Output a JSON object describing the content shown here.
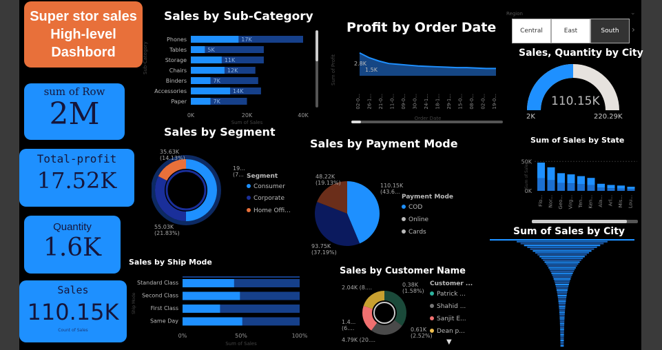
{
  "dashboard": {
    "title_line1": "Super stor sales",
    "title_line2": "High-level",
    "title_line3": "Dashbord"
  },
  "kpis": {
    "rows_label": "sum of Row",
    "rows_value": "2M",
    "profit_label": "Total-profit",
    "profit_value": "17.52K",
    "quantity_label": "Quantity",
    "quantity_value": "1.6K",
    "sales_label": "Sales",
    "sales_value": "110.15K",
    "sales_caption": "Count of Sales"
  },
  "subcategory": {
    "title": "Sales by Sub-Category",
    "ylabel": "Sub-Category",
    "xlabel": "Sum of Sales",
    "xticks": [
      "0K",
      "20K",
      "40K"
    ]
  },
  "profit_date": {
    "title": "Profit by Order Date",
    "ylabel": "Sum of Profit",
    "xlabel": "Order Date",
    "xticks": [
      "02-0...",
      "26-1...",
      "21-0...",
      "11-0...",
      "09-0...",
      "30-0...",
      "24-1...",
      "18-1...",
      "29-1...",
      "15-0...",
      "08-0...",
      "02-0...",
      "19-0..."
    ]
  },
  "region_slicer": {
    "label": "Region",
    "options": [
      "Central",
      "East",
      "South"
    ],
    "selected": "South"
  },
  "gauge": {
    "title": "Sales, Quantity by City",
    "value": "110.15K",
    "min": "2K",
    "max": "220.29K",
    "fraction": 0.5
  },
  "segment": {
    "title": "Sales by Segment",
    "legend_title": "Segment",
    "labels": [
      "Consumer",
      "Corporate",
      "Home Offi..."
    ],
    "colors": [
      "#1e90ff",
      "#1a2f9a",
      "#e8703a"
    ],
    "values": [
      55.03,
      35.63,
      19.5
    ],
    "callout_top": "35.63K",
    "callout_top_pct": "(14.13%)",
    "callout_right": "19...",
    "callout_right_pct": "(7...",
    "callout_bottom": "55.03K",
    "callout_bottom_pct": "(21.83%)"
  },
  "payment": {
    "title": "Sales by Payment Mode",
    "legend_title": "Payment Mode",
    "labels": [
      "COD",
      "Online",
      "Cards"
    ],
    "colors": [
      "#1e90ff",
      "#0b1a5e",
      "#6b2e1a"
    ],
    "values": [
      110.15,
      93.75,
      48.22
    ],
    "callout_cod": "110.15K",
    "callout_cod_pct": "(43.6...",
    "callout_online": "93.75K",
    "callout_online_pct": "(37.19%)",
    "callout_cards": "48.22K",
    "callout_cards_pct": "(19.13%)"
  },
  "state": {
    "title": "Sum of Sales by State",
    "ylabel": "Sum of Sales",
    "xlabel": "State",
    "yticks": [
      "50K",
      "0K"
    ],
    "states": [
      "Flo...",
      "Nor...",
      "Geo...",
      "Virg...",
      "Ten...",
      "Ken...",
      "Ala...",
      "Arl...",
      "Mis...",
      "Lou..."
    ]
  },
  "city_funnel": {
    "title": "Sum of Sales by City"
  },
  "shipmode": {
    "title": "Sales by Ship Mode",
    "ylabel": "Ship Mode",
    "xlabel": "Sum of Sales",
    "categories": [
      "Standard Class",
      "Second Class",
      "First Class",
      "Same Day"
    ],
    "xticks": [
      "0%",
      "50%",
      "100%"
    ]
  },
  "customer": {
    "title": "Sales by Customer Name",
    "legend_title": "Customer ...",
    "labels": [
      "Patrick ...",
      "Shahid ...",
      "Sanjit E...",
      "Dean p..."
    ],
    "colors": [
      "#2db39e",
      "#777777",
      "#f07070",
      "#f0c050"
    ],
    "callout_tl": "2.04K (8....",
    "callout_tr": "0.38K",
    "callout_tr_pct": "(1.58%)",
    "callout_l1": "1.4...",
    "callout_l2": "(6....",
    "callout_br": "0.61K",
    "callout_br_pct": "(2.52%)",
    "callout_bl": "4.79K (20...."
  },
  "chart_data": [
    {
      "type": "bar",
      "title": "Sales by Sub-Category",
      "xlabel": "Sum of Sales",
      "ylabel": "Sub-Category",
      "categories": [
        "Phones",
        "Tables",
        "Storage",
        "Chairs",
        "Binders",
        "Accessories",
        "Paper"
      ],
      "series": [
        {
          "name": "",
          "values": [
            17,
            5,
            11,
            12,
            7,
            14,
            7
          ]
        },
        {
          "name": "",
          "values": [
            40,
            26,
            26,
            23,
            24,
            25,
            20
          ]
        }
      ],
      "data_labels": [
        "17K",
        "5K",
        "11K",
        "12K",
        "7K",
        "14K",
        "7K"
      ],
      "xlim": [
        0,
        40
      ]
    },
    {
      "type": "area",
      "title": "Profit by Order Date",
      "ylabel": "Sum of Profit",
      "xlabel": "Order Date",
      "values": [
        2.8,
        2.2,
        1.8,
        1.5,
        1.4,
        1.3,
        1.2,
        1.15,
        1.1,
        1.05,
        1.0,
        1.0,
        0.95,
        0.9,
        0.9
      ],
      "annotations": [
        "2.8K",
        "1.5K"
      ]
    },
    {
      "type": "bar",
      "title": "Sum of Sales by State",
      "ylabel": "Sum of Sales",
      "xlabel": "State",
      "categories": [
        "Flo...",
        "Nor...",
        "Geo...",
        "Virg...",
        "Ten...",
        "Ken...",
        "Ala...",
        "Arl...",
        "Mis...",
        "Lou..."
      ],
      "values": [
        48,
        40,
        30,
        28,
        25,
        22,
        12,
        10,
        9,
        7
      ],
      "ylim": [
        0,
        55
      ]
    },
    {
      "type": "bar",
      "title": "Sales by Ship Mode",
      "xlabel": "Sum of Sales",
      "ylabel": "Ship Mode",
      "categories": [
        "Standard Class",
        "Second Class",
        "First Class",
        "Same Day"
      ],
      "values": [
        44,
        49,
        32,
        51
      ],
      "xlim": [
        0,
        100
      ]
    },
    {
      "type": "pie",
      "title": "Sales by Customer Name",
      "categories": [
        "Patrick ...",
        "Shahid ...",
        "Sanjit E...",
        "Dean p..."
      ],
      "values": [
        35,
        25,
        20,
        20
      ]
    }
  ]
}
